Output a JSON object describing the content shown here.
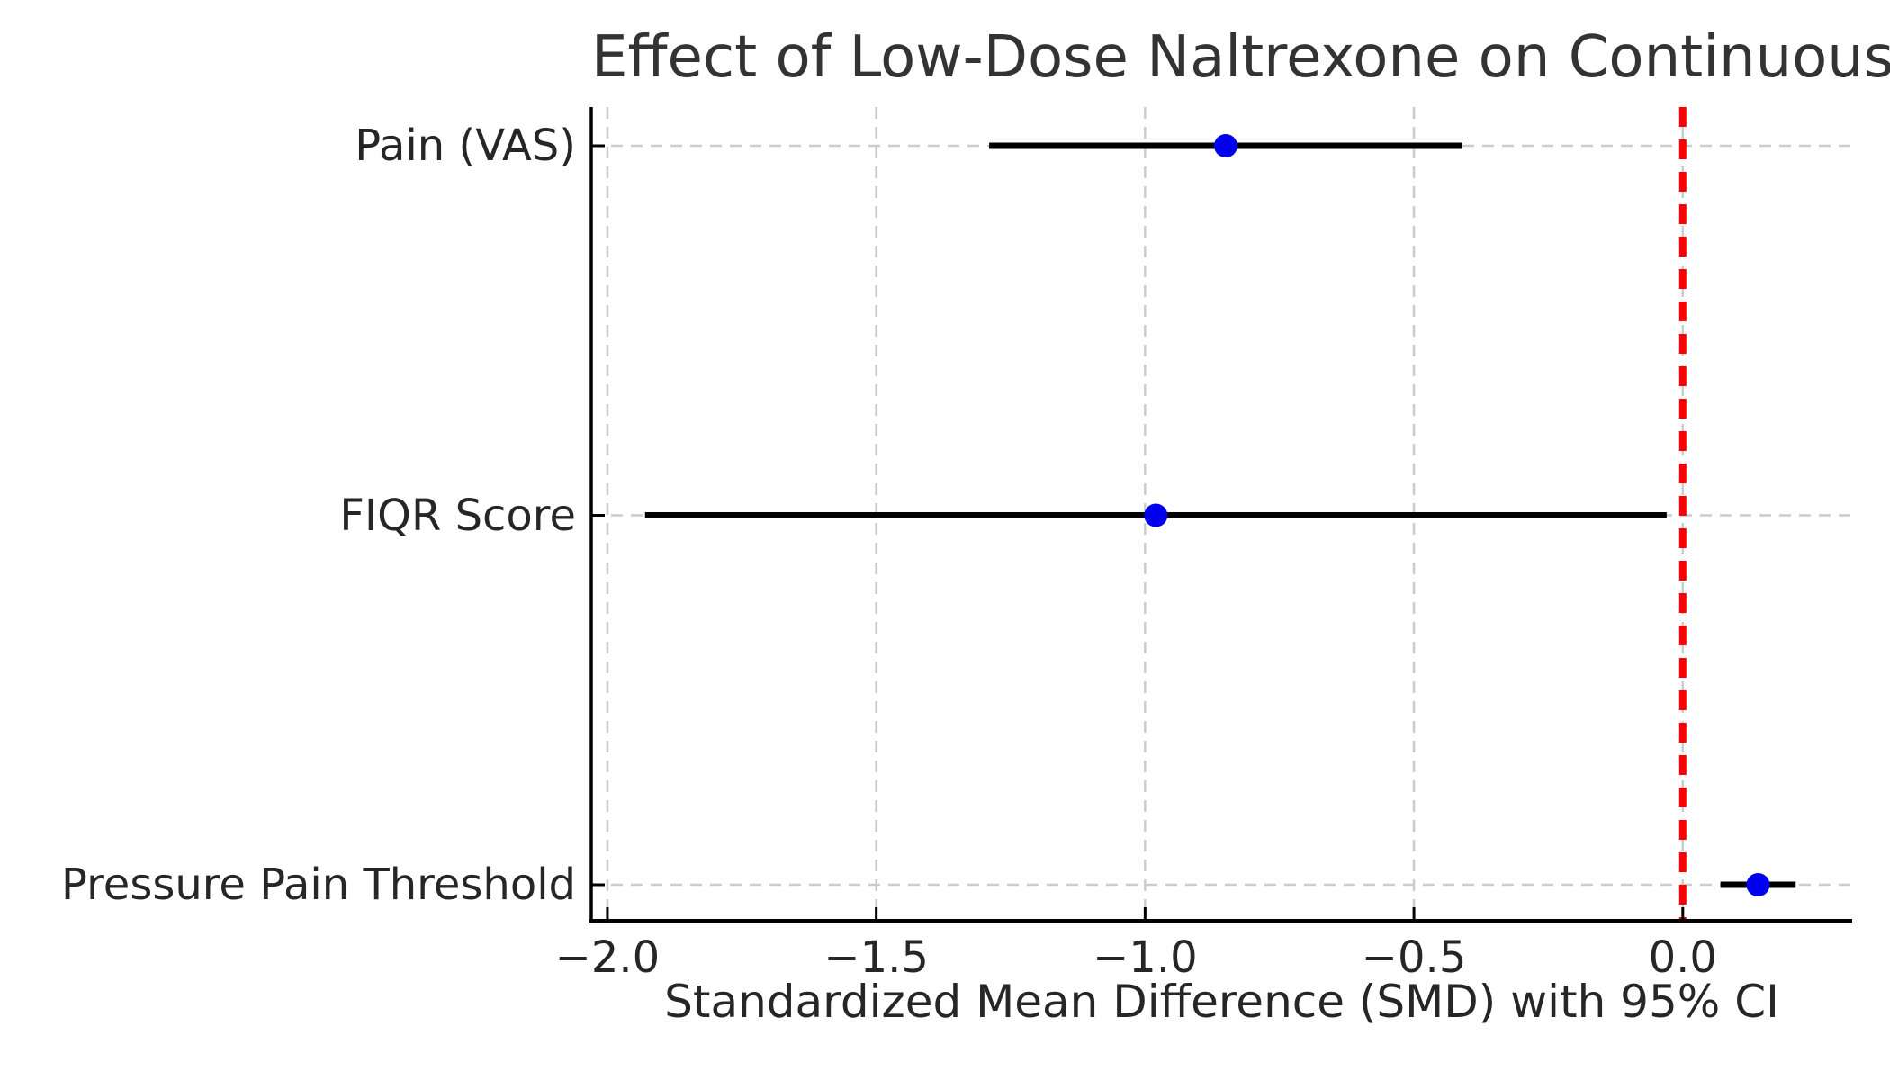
{
  "chart_data": {
    "type": "scatter",
    "subtype": "forest-plot-errorbar",
    "title": "Effect of Low-Dose Naltrexone on Continuous Outcomes",
    "title_visible_clipped": "Effect of Low-Dose Naltrexone on Continuous Outc",
    "xlabel": "Standardized Mean Difference (SMD) with 95% CI",
    "ylabel": "",
    "categories": [
      "Pain (VAS)",
      "FIQR Score",
      "Pressure Pain Threshold"
    ],
    "series": [
      {
        "name": "SMD with 95% CI",
        "values": [
          -0.85,
          -0.98,
          0.14
        ],
        "ci_lower": [
          -1.29,
          -1.93,
          0.07
        ],
        "ci_upper": [
          -0.41,
          -0.03,
          0.21
        ]
      }
    ],
    "x_ticks": [
      -2.0,
      -1.5,
      -1.0,
      -0.5,
      0.0
    ],
    "x_tick_labels": [
      "−2.0",
      "−1.5",
      "−1.0",
      "−0.5",
      "0.0"
    ],
    "xlim": [
      -2.03,
      0.315
    ],
    "reference_line_x": 0.0,
    "grid": true,
    "legend": false,
    "colors": {
      "marker": "#0000ee",
      "ci_line": "#000000",
      "reference_line": "#ff0000",
      "gridline": "#cccccc",
      "spine": "#000000",
      "text": "#262626",
      "title_text": "#333333",
      "background": "#ffffff"
    }
  }
}
